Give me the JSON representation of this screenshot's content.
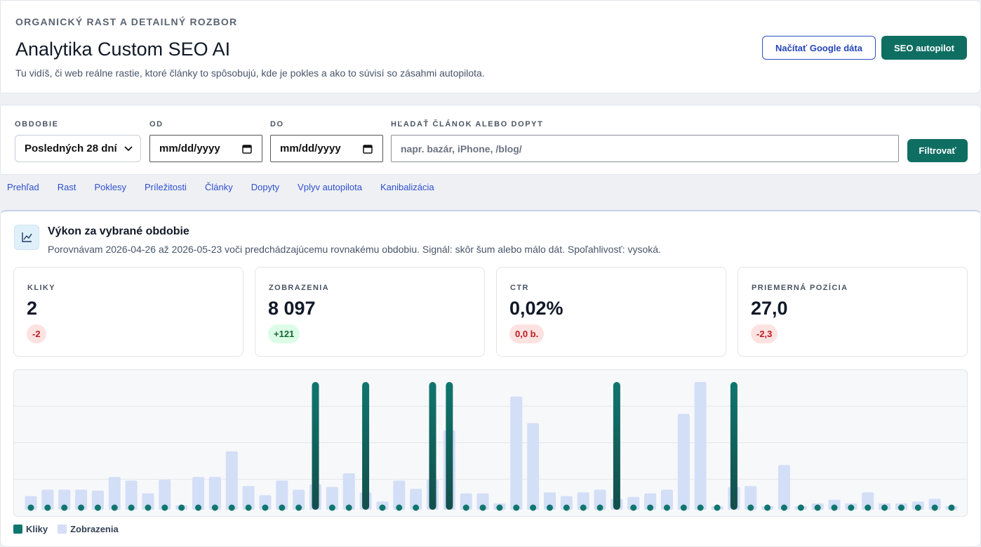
{
  "header": {
    "eyebrow": "ORGANICKÝ RAST A DETAILNÝ ROZBOR",
    "title": "Analytika Custom SEO AI",
    "description": "Tu vidíš, či web reálne rastie, ktoré články to spôsobujú, kde je pokles a ako to súvisí so zásahmi autopilota.",
    "buttons": [
      "Načítať Google dáta",
      "SEO autopilot"
    ]
  },
  "filters": {
    "period_label": "OBDOBIE",
    "period_value": "Posledných 28 dní",
    "from_label": "OD",
    "from_placeholder": "mm/dd/yyyy",
    "to_label": "DO",
    "to_placeholder": "mm/dd/yyyy",
    "search_label": "HĽADAŤ ČLÁNOK ALEBO DOPYT",
    "search_placeholder": "napr. bazár, iPhone, /blog/",
    "submit": "Filtrovať"
  },
  "tabs": [
    "Prehľad",
    "Rast",
    "Poklesy",
    "Príležitosti",
    "Články",
    "Dopyty",
    "Vplyv autopilota",
    "Kanibalizácia"
  ],
  "panel": {
    "title": "Výkon za vybrané obdobie",
    "subtitle": "Porovnávam 2026-04-26 až 2026-05-23 voči predchádzajúcemu rovnakému obdobiu. Signál: skôr šum alebo málo dát. Spoľahlivosť: vysoká.",
    "metrics": [
      {
        "label": "KLIKY",
        "value": "2",
        "change": "-2",
        "tone": "negative"
      },
      {
        "label": "ZOBRAZENIA",
        "value": "8 097",
        "change": "+121",
        "tone": "positive"
      },
      {
        "label": "CTR",
        "value": "0,02%",
        "change": "0,0 b.",
        "tone": "negative"
      },
      {
        "label": "PRIEMERNÁ POZÍCIA",
        "value": "27,0",
        "change": "-2,3",
        "tone": "negative"
      }
    ]
  },
  "chart_data": {
    "type": "bar",
    "ylim": [
      0,
      1
    ],
    "y2lim": [
      0,
      1400
    ],
    "series": [
      {
        "name": "Kliky",
        "color": "#0f766e",
        "values": [
          0,
          0,
          0,
          0,
          0,
          0,
          0,
          0,
          0,
          0,
          0,
          0,
          0,
          0,
          0,
          0,
          0,
          1,
          0,
          0,
          1,
          0,
          0,
          0,
          1,
          1,
          0,
          0,
          0,
          0,
          0,
          0,
          0,
          0,
          0,
          1,
          0,
          0,
          0,
          0,
          0,
          0,
          1,
          0,
          0,
          0,
          0,
          0,
          0,
          0,
          0,
          0,
          0,
          0,
          0,
          0
        ]
      },
      {
        "name": "Zobrazenia",
        "color": "#d3def7",
        "axis": "y2",
        "values": [
          150,
          220,
          220,
          220,
          210,
          360,
          320,
          180,
          330,
          50,
          360,
          360,
          640,
          260,
          160,
          320,
          220,
          280,
          250,
          400,
          190,
          90,
          320,
          230,
          330,
          870,
          180,
          180,
          70,
          1240,
          950,
          190,
          150,
          190,
          220,
          120,
          140,
          180,
          220,
          1050,
          1400,
          40,
          250,
          260,
          40,
          490,
          40,
          70,
          110,
          70,
          190,
          70,
          70,
          90,
          120,
          40
        ]
      }
    ]
  }
}
